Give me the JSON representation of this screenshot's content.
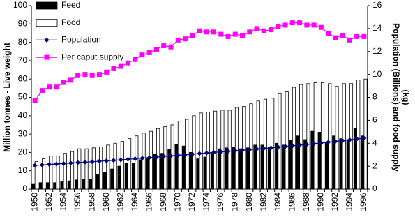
{
  "chart_data": {
    "type": "bar-line",
    "ylabel": "Million tonnes - Live weight",
    "y2label": [
      "Population (Billions) and food supply",
      "(kg)"
    ],
    "categories": [
      "1950",
      null,
      "1952",
      null,
      "1954",
      null,
      "1956",
      null,
      "1958",
      null,
      "1960",
      null,
      "1962",
      null,
      "1964",
      null,
      "1966",
      null,
      "1968",
      null,
      "1970",
      null,
      "1972",
      null,
      "1974",
      null,
      "1976",
      null,
      "1978",
      null,
      "1980",
      null,
      "1982",
      null,
      "1984",
      null,
      "1986",
      null,
      "1988",
      null,
      "1990",
      null,
      "1992",
      null,
      "1994",
      null,
      "1996"
    ],
    "ylim": [
      0,
      100
    ],
    "yticks": [
      0,
      10,
      20,
      30,
      40,
      50,
      60,
      70,
      80,
      90,
      100
    ],
    "y2lim": [
      0,
      16
    ],
    "y2ticks": [
      0,
      2,
      4,
      6,
      8,
      10,
      12,
      14,
      16
    ],
    "series": [
      {
        "name": "Feed",
        "kind": "bar",
        "color": "#000000",
        "values": [
          3,
          3.5,
          3.5,
          3.5,
          4,
          4.5,
          5,
          5.5,
          5.5,
          8,
          9,
          11,
          12.5,
          14,
          14,
          16,
          17,
          19,
          19.5,
          21.5,
          24.5,
          23.5,
          20,
          16.5,
          17.5,
          20,
          22,
          22.5,
          23,
          22,
          22.5,
          24,
          24,
          23,
          25,
          24,
          26.5,
          29,
          27,
          31.5,
          31,
          25.5,
          29,
          27.5,
          27,
          33,
          29
        ]
      },
      {
        "name": "Food",
        "kind": "bar",
        "color": "#ffffff",
        "values": [
          15,
          16.5,
          18,
          18,
          19.5,
          20.5,
          22,
          22,
          22.5,
          23,
          24,
          25,
          26,
          27.5,
          29,
          30.5,
          31.5,
          33,
          34,
          35,
          37,
          38,
          40,
          41.5,
          42,
          42.5,
          43,
          43,
          44.5,
          45,
          46.5,
          48,
          49,
          49.5,
          52,
          53,
          55.5,
          57,
          57.5,
          58,
          58,
          57.5,
          56,
          57.5,
          57.5,
          59.5,
          60
        ]
      },
      {
        "name": "Population",
        "kind": "line",
        "marker": "diamond",
        "axis": "y2",
        "color": "#000080",
        "values": [
          2.07,
          2.11,
          2.15,
          2.19,
          2.23,
          2.27,
          2.31,
          2.35,
          2.39,
          2.43,
          2.47,
          2.51,
          2.55,
          2.6,
          2.65,
          2.7,
          2.75,
          2.8,
          2.85,
          2.9,
          2.95,
          3.0,
          3.05,
          3.1,
          3.15,
          3.2,
          3.25,
          3.3,
          3.35,
          3.4,
          3.45,
          3.5,
          3.55,
          3.6,
          3.66,
          3.72,
          3.78,
          3.84,
          3.9,
          3.96,
          4.02,
          4.09,
          4.16,
          4.23,
          4.3,
          4.37,
          4.44
        ]
      },
      {
        "name": "Per caput supply",
        "kind": "line",
        "marker": "square",
        "axis": "y2",
        "color": "#ff00ff",
        "values": [
          7.7,
          8.6,
          8.9,
          8.9,
          9.3,
          9.5,
          9.9,
          10.0,
          9.9,
          10.0,
          10.2,
          10.5,
          10.7,
          11.0,
          11.3,
          11.7,
          11.9,
          12.2,
          12.5,
          12.4,
          13.0,
          13.1,
          13.4,
          13.8,
          13.7,
          13.7,
          13.5,
          13.3,
          13.5,
          13.4,
          13.7,
          14.0,
          13.8,
          13.9,
          14.2,
          14.3,
          14.5,
          14.5,
          14.3,
          14.3,
          14.1,
          13.6,
          13.2,
          13.4,
          13.0,
          13.3,
          13.3
        ]
      }
    ]
  }
}
